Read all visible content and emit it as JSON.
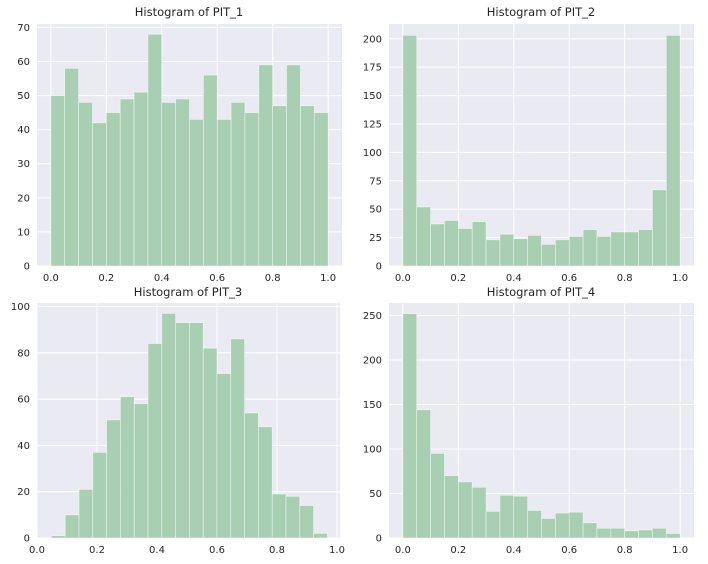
{
  "figure": {
    "panel_background": "#EAEAF2",
    "grid_color": "#FFFFFF",
    "bar_color": "#A9CFB3"
  },
  "chart_data": [
    {
      "type": "bar",
      "title": "Histogram of PIT_1",
      "xlabel": "",
      "ylabel": "",
      "bin_edges": [
        0.0,
        0.05,
        0.1,
        0.15,
        0.2,
        0.25,
        0.3,
        0.35,
        0.4,
        0.45,
        0.5,
        0.55,
        0.6,
        0.65,
        0.7,
        0.75,
        0.8,
        0.85,
        0.9,
        0.95,
        1.0
      ],
      "values": [
        50,
        58,
        48,
        42,
        45,
        49,
        51,
        68,
        48,
        49,
        43,
        56,
        43,
        48,
        45,
        59,
        47,
        59,
        47,
        45
      ],
      "xlim": [
        -0.05,
        1.05
      ],
      "ylim": [
        0,
        71
      ],
      "xticks": [
        0.0,
        0.2,
        0.4,
        0.6,
        0.8,
        1.0
      ],
      "xtick_labels": [
        "0.0",
        "0.2",
        "0.4",
        "0.6",
        "0.8",
        "1.0"
      ],
      "yticks": [
        0,
        10,
        20,
        30,
        40,
        50,
        60,
        70
      ],
      "ytick_labels": [
        "0",
        "10",
        "20",
        "30",
        "40",
        "50",
        "60",
        "70"
      ],
      "grid": true
    },
    {
      "type": "bar",
      "title": "Histogram of PIT_2",
      "xlabel": "",
      "ylabel": "",
      "bin_edges": [
        0.0,
        0.05,
        0.1,
        0.15,
        0.2,
        0.25,
        0.3,
        0.35,
        0.4,
        0.45,
        0.5,
        0.55,
        0.6,
        0.65,
        0.7,
        0.75,
        0.8,
        0.85,
        0.9,
        0.95,
        1.0
      ],
      "values": [
        203,
        52,
        37,
        40,
        33,
        39,
        23,
        28,
        24,
        27,
        19,
        23,
        26,
        32,
        26,
        30,
        30,
        32,
        67,
        203
      ],
      "xlim": [
        -0.05,
        1.05
      ],
      "ylim": [
        0,
        213
      ],
      "xticks": [
        0.0,
        0.2,
        0.4,
        0.6,
        0.8,
        1.0
      ],
      "xtick_labels": [
        "0.0",
        "0.2",
        "0.4",
        "0.6",
        "0.8",
        "1.0"
      ],
      "yticks": [
        0,
        25,
        50,
        75,
        100,
        125,
        150,
        175,
        200
      ],
      "ytick_labels": [
        "0",
        "25",
        "50",
        "75",
        "100",
        "125",
        "150",
        "175",
        "200"
      ],
      "grid": true
    },
    {
      "type": "bar",
      "title": "Histogram of PIT_3",
      "xlabel": "",
      "ylabel": "",
      "bin_edges": [
        0.048,
        0.094,
        0.14,
        0.186,
        0.232,
        0.278,
        0.324,
        0.37,
        0.416,
        0.462,
        0.508,
        0.554,
        0.6,
        0.646,
        0.692,
        0.738,
        0.784,
        0.83,
        0.876,
        0.922,
        0.968
      ],
      "values": [
        1,
        10,
        21,
        37,
        51,
        61,
        58,
        84,
        97,
        93,
        93,
        82,
        71,
        86,
        54,
        48,
        19,
        18,
        14,
        2
      ],
      "xlim": [
        0.0,
        1.01
      ],
      "ylim": [
        0,
        101.5
      ],
      "xticks": [
        0.0,
        0.2,
        0.4,
        0.6,
        0.8,
        1.0
      ],
      "xtick_labels": [
        "0.0",
        "0.2",
        "0.4",
        "0.6",
        "0.8",
        "1.0"
      ],
      "yticks": [
        0,
        20,
        40,
        60,
        80,
        100
      ],
      "ytick_labels": [
        "0",
        "20",
        "40",
        "60",
        "80",
        "100"
      ],
      "grid": true
    },
    {
      "type": "bar",
      "title": "Histogram of PIT_4",
      "xlabel": "",
      "ylabel": "",
      "bin_edges": [
        0.0,
        0.05,
        0.1,
        0.15,
        0.2,
        0.25,
        0.3,
        0.35,
        0.4,
        0.45,
        0.5,
        0.55,
        0.6,
        0.65,
        0.7,
        0.75,
        0.8,
        0.85,
        0.9,
        0.95,
        1.0
      ],
      "values": [
        252,
        144,
        95,
        70,
        63,
        57,
        30,
        48,
        47,
        31,
        22,
        28,
        29,
        17,
        11,
        11,
        8,
        9,
        11,
        5
      ],
      "xlim": [
        -0.05,
        1.05
      ],
      "ylim": [
        0,
        264
      ],
      "xticks": [
        0.0,
        0.2,
        0.4,
        0.6,
        0.8,
        1.0
      ],
      "xtick_labels": [
        "0.0",
        "0.2",
        "0.4",
        "0.6",
        "0.8",
        "1.0"
      ],
      "yticks": [
        0,
        50,
        100,
        150,
        200,
        250
      ],
      "ytick_labels": [
        "0",
        "50",
        "100",
        "150",
        "200",
        "250"
      ],
      "grid": true
    }
  ]
}
